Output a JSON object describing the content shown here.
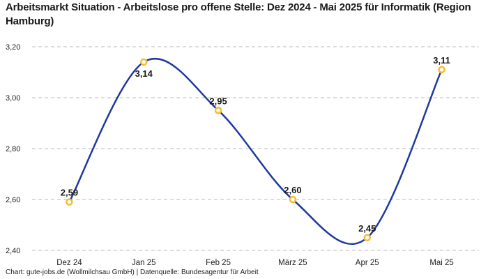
{
  "title": "Arbeitsmarkt Situation - Arbeitslose pro offene Stelle: Dez 2024 - Mai 2025 für Informatik (Region Hamburg)",
  "footer": "Chart: gute-jobs.de (Wollmilchsau GmbH) | Datenquelle: Bundesagentur für Arbeit",
  "chart_data": {
    "type": "line",
    "title": "Arbeitsmarkt Situation - Arbeitslose pro offene Stelle: Dez 2024 - Mai 2025 für Informatik (Region Hamburg)",
    "categories": [
      "Dez 24",
      "Jan 25",
      "Feb 25",
      "März 25",
      "Apr 25",
      "Mai 25"
    ],
    "values": [
      2.59,
      3.14,
      2.95,
      2.6,
      2.45,
      3.11
    ],
    "value_labels": [
      "2,59",
      "3,14",
      "2,95",
      "2,60",
      "2,45",
      "3,11"
    ],
    "label_positions": [
      "above",
      "below",
      "above",
      "above",
      "above",
      "above"
    ],
    "ytick_values": [
      3.2,
      3.0,
      2.8,
      2.6,
      2.4
    ],
    "ytick_labels": [
      "3,20",
      "3,00",
      "2,80",
      "2,60",
      "2,40"
    ],
    "ylim": [
      2.4,
      3.2
    ],
    "xlabel": "",
    "ylabel": "",
    "grid": "horizontal-dashed",
    "legend": "none",
    "line_style": "smooth-spline",
    "marker_style": "hollow-circle",
    "colors": {
      "line": "#1e3a9e",
      "marker_ring": "#f9bb2a",
      "marker_fill": "#ffffff",
      "grid": "#c6c6c6",
      "axis_text": "#222222",
      "point_label": "#1a1a1a"
    }
  }
}
